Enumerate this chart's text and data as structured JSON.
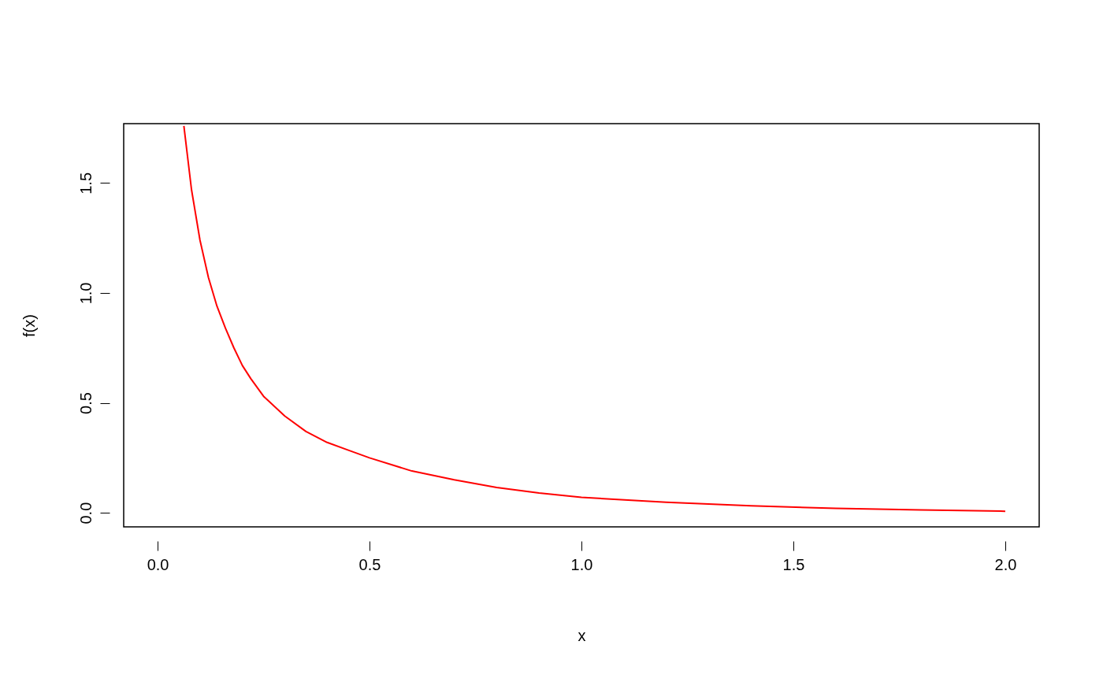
{
  "chart_data": {
    "type": "line",
    "xlabel": "x",
    "ylabel": "f(x)",
    "x": [
      0.062,
      0.08,
      0.1,
      0.12,
      0.14,
      0.16,
      0.18,
      0.2,
      0.22,
      0.25,
      0.3,
      0.35,
      0.4,
      0.45,
      0.5,
      0.6,
      0.7,
      0.8,
      0.9,
      1.0,
      1.2,
      1.4,
      1.6,
      1.8,
      2.0
    ],
    "series": [
      {
        "color": "#ff0000",
        "values": [
          1.76,
          1.47,
          1.24,
          1.07,
          0.94,
          0.84,
          0.75,
          0.67,
          0.61,
          0.53,
          0.44,
          0.37,
          0.32,
          0.285,
          0.25,
          0.19,
          0.15,
          0.115,
          0.09,
          0.07,
          0.048,
          0.032,
          0.02,
          0.013,
          0.007
        ]
      }
    ],
    "xlim": [
      -0.08,
      2.08
    ],
    "ylim": [
      -0.064,
      1.77
    ],
    "xticks": [
      {
        "value": 0,
        "label": "0.0"
      },
      0.5,
      {
        "value": 1,
        "label": "1.0"
      },
      1.5,
      {
        "value": 2,
        "label": "2.0"
      }
    ],
    "yticks": [
      {
        "value": 0,
        "label": "0.0"
      },
      0.5,
      {
        "value": 1,
        "label": "1.0"
      },
      1.5
    ],
    "grid": false,
    "marker": "none",
    "line_style": "solid"
  }
}
